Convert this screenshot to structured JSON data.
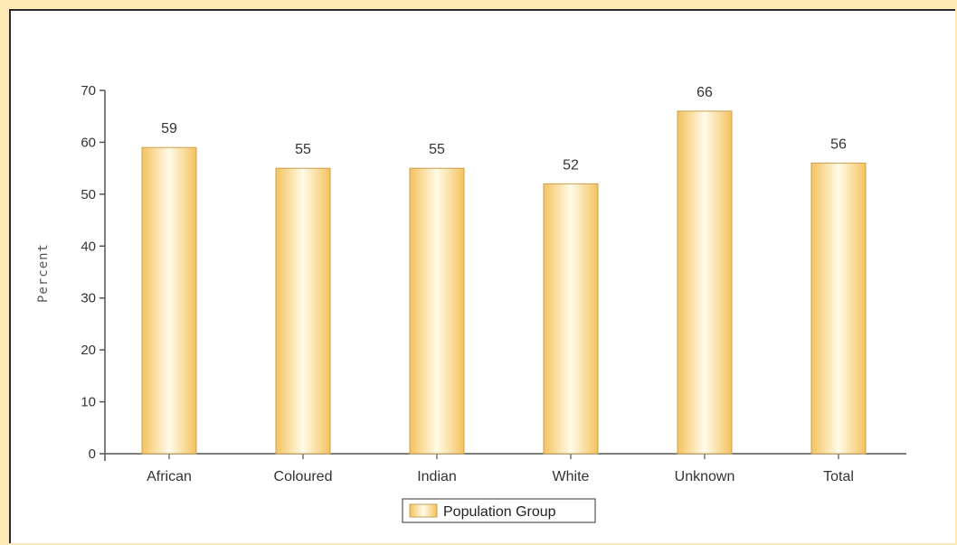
{
  "chart_data": {
    "type": "bar",
    "categories": [
      "African",
      "Coloured",
      "Indian",
      "White",
      "Unknown",
      "Total"
    ],
    "series": [
      {
        "name": "Population Group",
        "values": [
          59,
          55,
          55,
          52,
          66,
          56
        ]
      }
    ],
    "value_labels": [
      "59",
      "55",
      "55",
      "52",
      "66",
      "56"
    ],
    "ylabel": "Percent",
    "xlabel": "",
    "ylim": [
      0,
      70
    ],
    "yticks": [
      0,
      10,
      20,
      30,
      40,
      50,
      60,
      70
    ],
    "ytick_labels": [
      "0",
      "10",
      "20",
      "30",
      "40",
      "50",
      "60",
      "70"
    ],
    "legend": {
      "position": "bottom-center",
      "label": "Population Group"
    },
    "grid": false,
    "colors": {
      "bar_edge": "#c9a050",
      "bar_light": "#fffbe8",
      "bar_mid": "#fde2a0",
      "bar_dark": "#f5c25e",
      "axis": "#555555",
      "page_background": "#fce9b4",
      "frame_border": "#2b2b2b"
    }
  }
}
